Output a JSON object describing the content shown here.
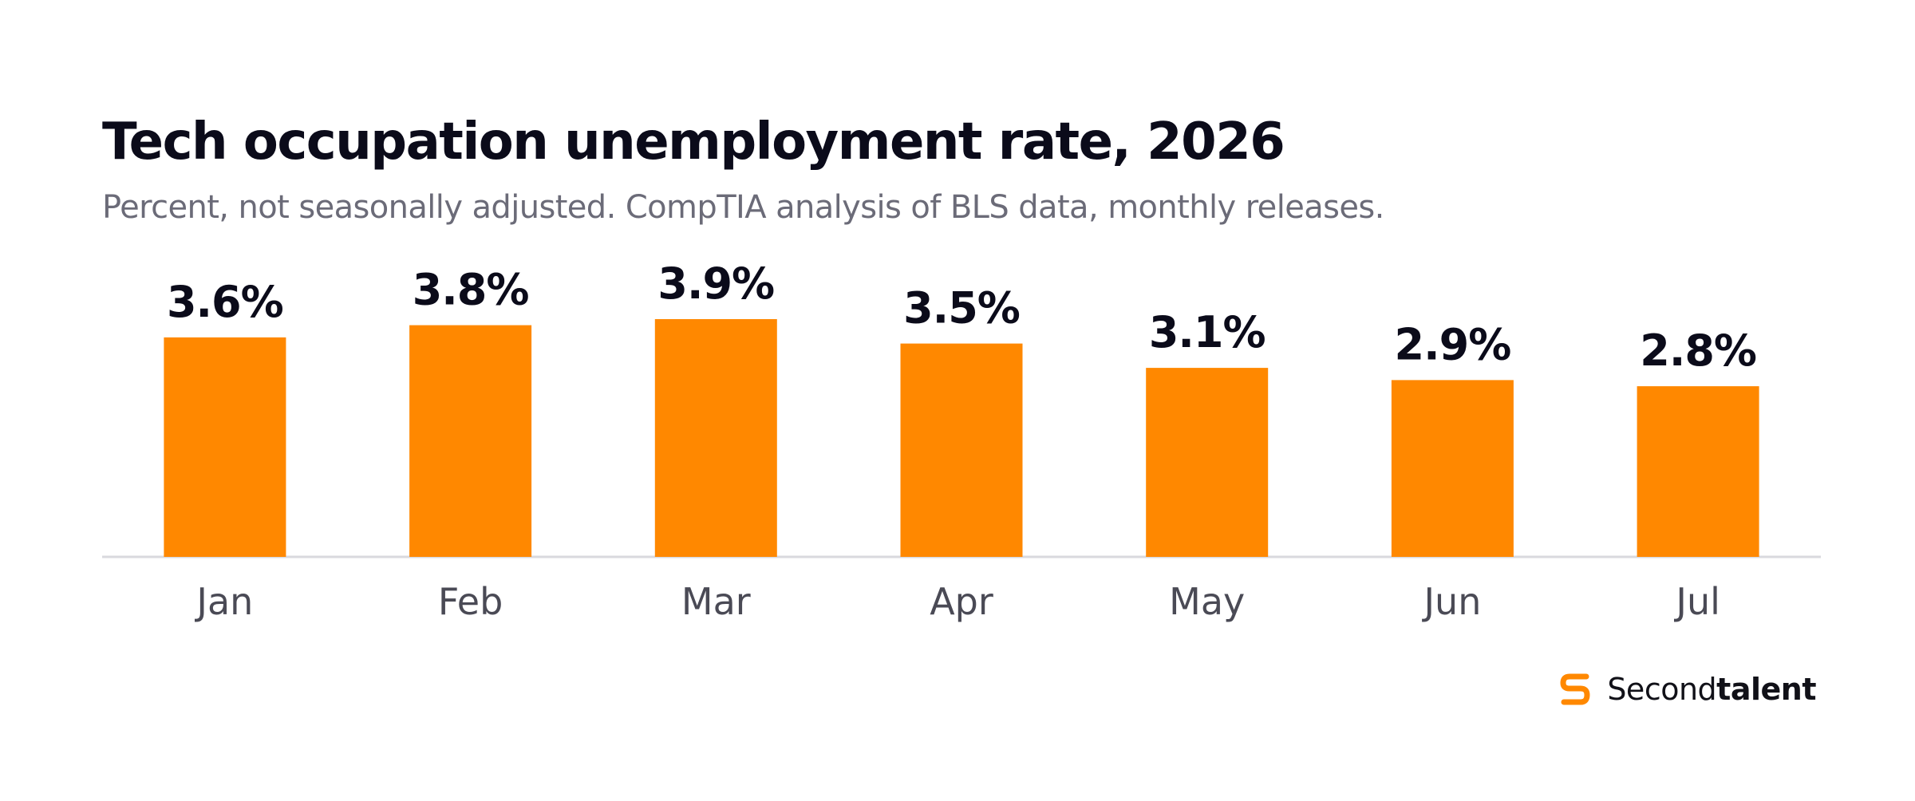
{
  "title": "Tech occupation unemployment rate, 2026",
  "subtitle": "Percent, not seasonally adjusted. CompTIA analysis of BLS data, monthly releases.",
  "brand": {
    "name_regular": "Second",
    "name_bold": "talent",
    "icon": "secondtalent-logo-icon"
  },
  "colors": {
    "bar": "#ff8800",
    "title": "#0b0b1a",
    "subtitle": "#6b6b78",
    "axis_labels": "#4a4a55",
    "baseline": "#d9d9de",
    "value_labels": "#0b0b1a"
  },
  "chart_data": {
    "type": "bar",
    "categories": [
      "Jan",
      "Feb",
      "Mar",
      "Apr",
      "May",
      "Jun",
      "Jul"
    ],
    "values": [
      3.6,
      3.8,
      3.9,
      3.5,
      3.1,
      2.9,
      2.8
    ],
    "value_labels": [
      "3.6%",
      "3.8%",
      "3.9%",
      "3.5%",
      "3.1%",
      "2.9%",
      "2.8%"
    ],
    "title": "Tech occupation unemployment rate, 2026",
    "xlabel": "",
    "ylabel": "",
    "ylim": [
      0,
      3.9
    ],
    "grid": false,
    "legend": "none"
  }
}
